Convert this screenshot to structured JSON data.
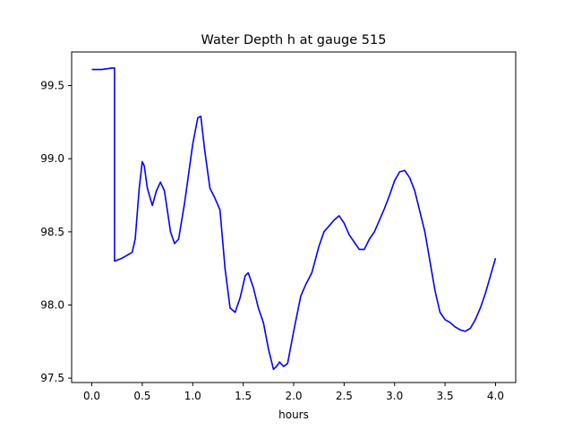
{
  "colors": {
    "series": "#0000ff",
    "axis": "#000000",
    "background": "#ffffff"
  },
  "chart_data": {
    "type": "line",
    "title": "Water Depth h at gauge 515",
    "xlabel": "hours",
    "ylabel": "",
    "xlim": [
      -0.2,
      4.2
    ],
    "ylim": [
      97.47,
      99.73
    ],
    "xticks": [
      0.0,
      0.5,
      1.0,
      1.5,
      2.0,
      2.5,
      3.0,
      3.5,
      4.0
    ],
    "xtick_labels": [
      "0.0",
      "0.5",
      "1.0",
      "1.5",
      "2.0",
      "2.5",
      "3.0",
      "3.5",
      "4.0"
    ],
    "yticks": [
      97.5,
      98.0,
      98.5,
      99.0,
      99.5
    ],
    "ytick_labels": [
      "97.5",
      "98.0",
      "98.5",
      "99.0",
      "99.5"
    ],
    "grid": false,
    "legend": "none",
    "series": [
      {
        "x": [
          0.0,
          0.1,
          0.2,
          0.225,
          0.2251,
          0.3,
          0.4,
          0.43,
          0.47,
          0.5,
          0.52,
          0.55,
          0.6,
          0.64,
          0.68,
          0.72,
          0.78,
          0.82,
          0.86,
          0.92,
          1.0,
          1.05,
          1.08,
          1.12,
          1.17,
          1.22,
          1.27,
          1.32,
          1.37,
          1.42,
          1.47,
          1.52,
          1.55,
          1.6,
          1.65,
          1.7,
          1.75,
          1.8,
          1.83,
          1.86,
          1.9,
          1.94,
          2.0,
          2.07,
          2.12,
          2.18,
          2.25,
          2.3,
          2.35,
          2.4,
          2.45,
          2.5,
          2.55,
          2.6,
          2.65,
          2.7,
          2.75,
          2.8,
          2.85,
          2.9,
          2.95,
          3.0,
          3.05,
          3.1,
          3.15,
          3.2,
          3.3,
          3.4,
          3.45,
          3.5,
          3.55,
          3.6,
          3.65,
          3.7,
          3.75,
          3.8,
          3.85,
          3.9,
          3.95,
          4.0
        ],
        "values": [
          99.61,
          99.61,
          99.62,
          99.62,
          98.3,
          98.32,
          98.36,
          98.45,
          98.8,
          98.98,
          98.95,
          98.8,
          98.68,
          98.78,
          98.84,
          98.78,
          98.5,
          98.42,
          98.45,
          98.7,
          99.1,
          99.28,
          99.29,
          99.05,
          98.8,
          98.73,
          98.65,
          98.25,
          97.98,
          97.95,
          98.05,
          98.2,
          98.22,
          98.12,
          97.98,
          97.88,
          97.7,
          97.56,
          97.58,
          97.61,
          97.58,
          97.6,
          97.82,
          98.06,
          98.14,
          98.22,
          98.4,
          98.5,
          98.54,
          98.58,
          98.61,
          98.56,
          98.48,
          98.43,
          98.38,
          98.38,
          98.45,
          98.5,
          98.58,
          98.66,
          98.75,
          98.85,
          98.91,
          98.92,
          98.87,
          98.78,
          98.5,
          98.1,
          97.95,
          97.9,
          97.88,
          97.85,
          97.83,
          97.82,
          97.84,
          97.9,
          97.98,
          98.08,
          98.2,
          98.32
        ]
      }
    ]
  }
}
